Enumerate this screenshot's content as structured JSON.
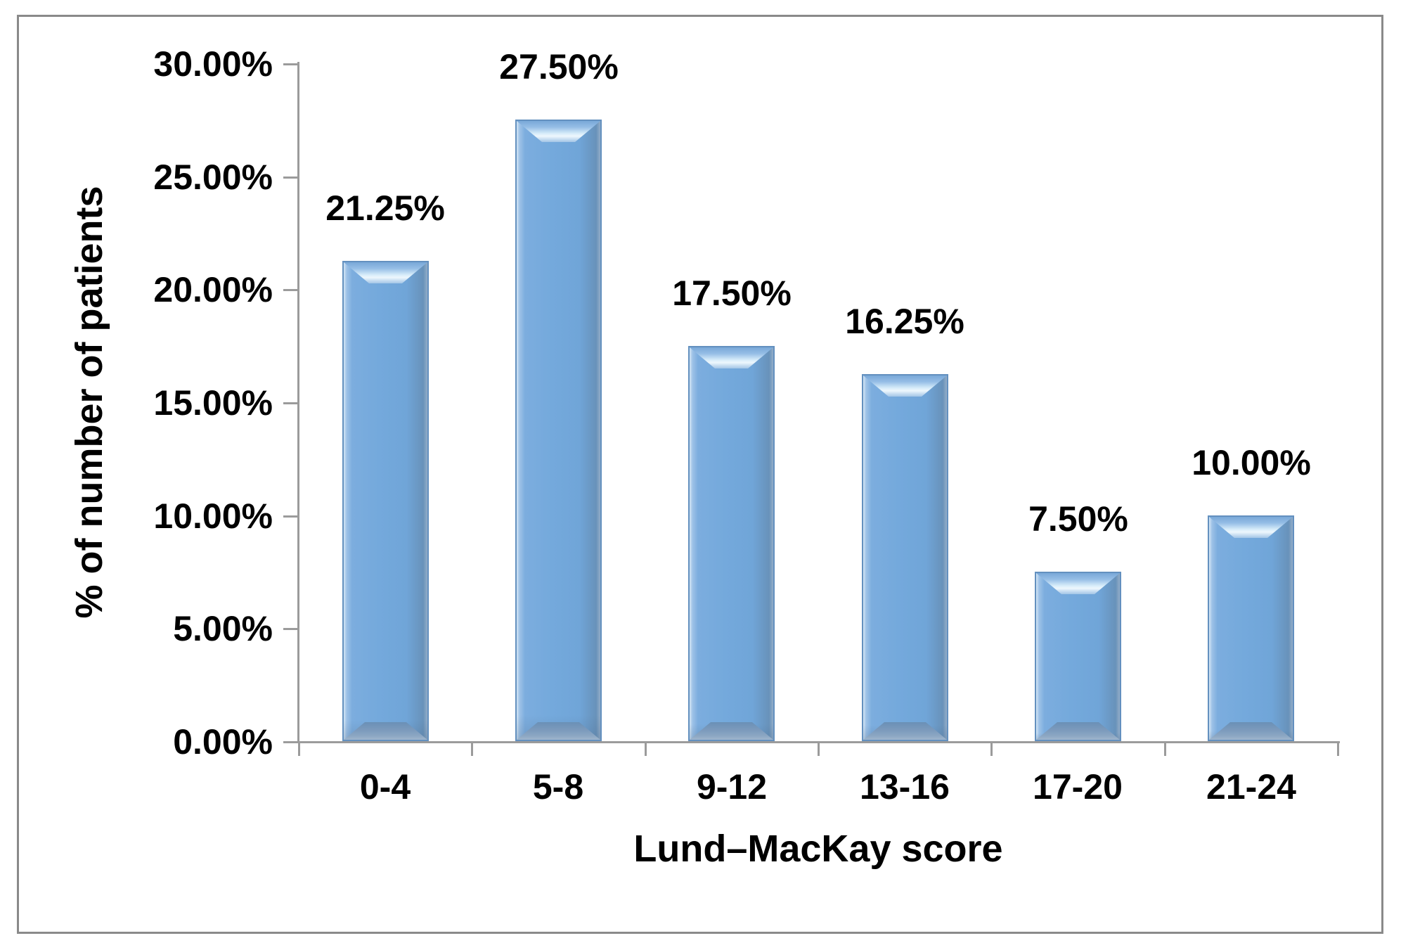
{
  "chart_data": {
    "type": "bar",
    "title": "",
    "categories": [
      "0-4",
      "5-8",
      "9-12",
      "13-16",
      "17-20",
      "21-24"
    ],
    "values": [
      21.25,
      27.5,
      17.5,
      16.25,
      7.5,
      10.0
    ],
    "value_labels": [
      "21.25%",
      "27.50%",
      "17.50%",
      "16.25%",
      "7.50%",
      "10.00%"
    ],
    "xlabel": "Lund–MacKay score",
    "ylabel": "% of number of patients",
    "ylim": [
      0,
      30
    ],
    "ytick_step": 5,
    "ytick_labels": [
      "0.00%",
      "5.00%",
      "10.00%",
      "15.00%",
      "20.00%",
      "25.00%",
      "30.00%"
    ],
    "grid": false,
    "legend": false,
    "bar_color": "#74a9dc",
    "bar_border_color": "#6390bf",
    "axis_color": "#9b9b9b",
    "frame_color": "#8a8a8a",
    "text_color": "#000000"
  }
}
